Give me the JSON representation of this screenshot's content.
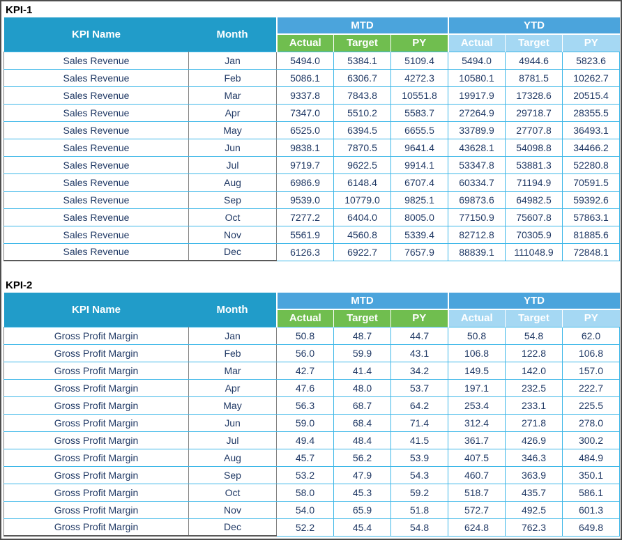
{
  "colors": {
    "kpi_header_bg": "#219CC9",
    "group_header_bg": "#4BA4DC",
    "mtd_sub_bg": "#70BE4F",
    "ytd_sub_bg": "#A5D8F3",
    "cell_border": "#3DB7E8",
    "left_col_border": "#808080",
    "frame_border": "#4D4D4D",
    "text_color": "#1F3864"
  },
  "chart_data": [
    {
      "type": "table",
      "section_label": "KPI-1",
      "header": {
        "kpi_name_label": "KPI Name",
        "month_label": "Month",
        "group_mtd": "MTD",
        "group_ytd": "YTD",
        "sub_columns": [
          "Actual",
          "Target",
          "PY"
        ]
      },
      "rows": [
        {
          "kpi": "Sales Revenue",
          "month": "Jan",
          "mtd": [
            "5494.0",
            "5384.1",
            "5109.4"
          ],
          "ytd": [
            "5494.0",
            "4944.6",
            "5823.6"
          ]
        },
        {
          "kpi": "Sales Revenue",
          "month": "Feb",
          "mtd": [
            "5086.1",
            "6306.7",
            "4272.3"
          ],
          "ytd": [
            "10580.1",
            "8781.5",
            "10262.7"
          ]
        },
        {
          "kpi": "Sales Revenue",
          "month": "Mar",
          "mtd": [
            "9337.8",
            "7843.8",
            "10551.8"
          ],
          "ytd": [
            "19917.9",
            "17328.6",
            "20515.4"
          ]
        },
        {
          "kpi": "Sales Revenue",
          "month": "Apr",
          "mtd": [
            "7347.0",
            "5510.2",
            "5583.7"
          ],
          "ytd": [
            "27264.9",
            "29718.7",
            "28355.5"
          ]
        },
        {
          "kpi": "Sales Revenue",
          "month": "May",
          "mtd": [
            "6525.0",
            "6394.5",
            "6655.5"
          ],
          "ytd": [
            "33789.9",
            "27707.8",
            "36493.1"
          ]
        },
        {
          "kpi": "Sales Revenue",
          "month": "Jun",
          "mtd": [
            "9838.1",
            "7870.5",
            "9641.4"
          ],
          "ytd": [
            "43628.1",
            "54098.8",
            "34466.2"
          ]
        },
        {
          "kpi": "Sales Revenue",
          "month": "Jul",
          "mtd": [
            "9719.7",
            "9622.5",
            "9914.1"
          ],
          "ytd": [
            "53347.8",
            "53881.3",
            "52280.8"
          ]
        },
        {
          "kpi": "Sales Revenue",
          "month": "Aug",
          "mtd": [
            "6986.9",
            "6148.4",
            "6707.4"
          ],
          "ytd": [
            "60334.7",
            "71194.9",
            "70591.5"
          ]
        },
        {
          "kpi": "Sales Revenue",
          "month": "Sep",
          "mtd": [
            "9539.0",
            "10779.0",
            "9825.1"
          ],
          "ytd": [
            "69873.6",
            "64982.5",
            "59392.6"
          ]
        },
        {
          "kpi": "Sales Revenue",
          "month": "Oct",
          "mtd": [
            "7277.2",
            "6404.0",
            "8005.0"
          ],
          "ytd": [
            "77150.9",
            "75607.8",
            "57863.1"
          ]
        },
        {
          "kpi": "Sales Revenue",
          "month": "Nov",
          "mtd": [
            "5561.9",
            "4560.8",
            "5339.4"
          ],
          "ytd": [
            "82712.8",
            "70305.9",
            "81885.6"
          ]
        },
        {
          "kpi": "Sales Revenue",
          "month": "Dec",
          "mtd": [
            "6126.3",
            "6922.7",
            "7657.9"
          ],
          "ytd": [
            "88839.1",
            "111048.9",
            "72848.1"
          ]
        }
      ]
    },
    {
      "type": "table",
      "section_label": "KPI-2",
      "header": {
        "kpi_name_label": "KPI Name",
        "month_label": "Month",
        "group_mtd": "MTD",
        "group_ytd": "YTD",
        "sub_columns": [
          "Actual",
          "Target",
          "PY"
        ]
      },
      "rows": [
        {
          "kpi": "Gross Profit Margin",
          "month": "Jan",
          "mtd": [
            "50.8",
            "48.7",
            "44.7"
          ],
          "ytd": [
            "50.8",
            "54.8",
            "62.0"
          ]
        },
        {
          "kpi": "Gross Profit Margin",
          "month": "Feb",
          "mtd": [
            "56.0",
            "59.9",
            "43.1"
          ],
          "ytd": [
            "106.8",
            "122.8",
            "106.8"
          ]
        },
        {
          "kpi": "Gross Profit Margin",
          "month": "Mar",
          "mtd": [
            "42.7",
            "41.4",
            "34.2"
          ],
          "ytd": [
            "149.5",
            "142.0",
            "157.0"
          ]
        },
        {
          "kpi": "Gross Profit Margin",
          "month": "Apr",
          "mtd": [
            "47.6",
            "48.0",
            "53.7"
          ],
          "ytd": [
            "197.1",
            "232.5",
            "222.7"
          ]
        },
        {
          "kpi": "Gross Profit Margin",
          "month": "May",
          "mtd": [
            "56.3",
            "68.7",
            "64.2"
          ],
          "ytd": [
            "253.4",
            "233.1",
            "225.5"
          ]
        },
        {
          "kpi": "Gross Profit Margin",
          "month": "Jun",
          "mtd": [
            "59.0",
            "68.4",
            "71.4"
          ],
          "ytd": [
            "312.4",
            "271.8",
            "278.0"
          ]
        },
        {
          "kpi": "Gross Profit Margin",
          "month": "Jul",
          "mtd": [
            "49.4",
            "48.4",
            "41.5"
          ],
          "ytd": [
            "361.7",
            "426.9",
            "300.2"
          ]
        },
        {
          "kpi": "Gross Profit Margin",
          "month": "Aug",
          "mtd": [
            "45.7",
            "56.2",
            "53.9"
          ],
          "ytd": [
            "407.5",
            "346.3",
            "484.9"
          ]
        },
        {
          "kpi": "Gross Profit Margin",
          "month": "Sep",
          "mtd": [
            "53.2",
            "47.9",
            "54.3"
          ],
          "ytd": [
            "460.7",
            "363.9",
            "350.1"
          ]
        },
        {
          "kpi": "Gross Profit Margin",
          "month": "Oct",
          "mtd": [
            "58.0",
            "45.3",
            "59.2"
          ],
          "ytd": [
            "518.7",
            "435.7",
            "586.1"
          ]
        },
        {
          "kpi": "Gross Profit Margin",
          "month": "Nov",
          "mtd": [
            "54.0",
            "65.9",
            "51.8"
          ],
          "ytd": [
            "572.7",
            "492.5",
            "601.3"
          ]
        },
        {
          "kpi": "Gross Profit Margin",
          "month": "Dec",
          "mtd": [
            "52.2",
            "45.4",
            "54.8"
          ],
          "ytd": [
            "624.8",
            "762.3",
            "649.8"
          ]
        }
      ]
    }
  ]
}
